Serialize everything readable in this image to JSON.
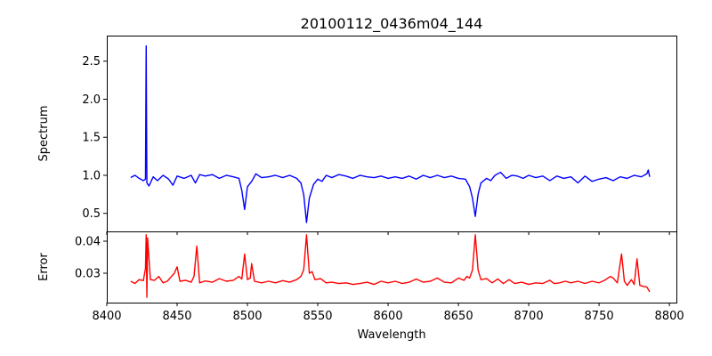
{
  "chart_data": [
    {
      "type": "line",
      "title": "20100112_0436m04_144",
      "xlabel": "",
      "ylabel": "Spectrum",
      "xlim": [
        8400,
        8805
      ],
      "ylim": [
        0.263,
        2.836
      ],
      "xticks": [
        8400,
        8450,
        8500,
        8550,
        8600,
        8650,
        8700,
        8750,
        8800
      ],
      "yticks": [
        0.5,
        1.0,
        1.5,
        2.0,
        2.5
      ],
      "ytick_labels": [
        "0.5",
        "1.0",
        "1.5",
        "2.0",
        "2.5"
      ],
      "grid": false,
      "series": [
        {
          "name": "Spectrum",
          "color": "#0000ff",
          "points": [
            [
              8417,
              0.97
            ],
            [
              8420,
              1.0
            ],
            [
              8423,
              0.96
            ],
            [
              8426,
              0.93
            ],
            [
              8427.5,
              0.95
            ],
            [
              8428,
              2.7
            ],
            [
              8428.5,
              0.9
            ],
            [
              8430,
              0.86
            ],
            [
              8433,
              0.98
            ],
            [
              8436,
              0.93
            ],
            [
              8440,
              1.0
            ],
            [
              8444,
              0.95
            ],
            [
              8447,
              0.87
            ],
            [
              8450,
              0.99
            ],
            [
              8455,
              0.96
            ],
            [
              8460,
              1.0
            ],
            [
              8463,
              0.9
            ],
            [
              8466,
              1.01
            ],
            [
              8470,
              0.99
            ],
            [
              8475,
              1.01
            ],
            [
              8480,
              0.96
            ],
            [
              8485,
              1.0
            ],
            [
              8490,
              0.98
            ],
            [
              8494,
              0.96
            ],
            [
              8496,
              0.8
            ],
            [
              8498,
              0.55
            ],
            [
              8500,
              0.85
            ],
            [
              8503,
              0.92
            ],
            [
              8506,
              1.02
            ],
            [
              8510,
              0.97
            ],
            [
              8515,
              0.98
            ],
            [
              8520,
              1.0
            ],
            [
              8525,
              0.97
            ],
            [
              8530,
              1.0
            ],
            [
              8535,
              0.96
            ],
            [
              8538,
              0.9
            ],
            [
              8540,
              0.75
            ],
            [
              8542,
              0.38
            ],
            [
              8544,
              0.7
            ],
            [
              8547,
              0.88
            ],
            [
              8550,
              0.95
            ],
            [
              8553,
              0.92
            ],
            [
              8556,
              1.0
            ],
            [
              8560,
              0.97
            ],
            [
              8565,
              1.01
            ],
            [
              8570,
              0.99
            ],
            [
              8575,
              0.96
            ],
            [
              8580,
              1.0
            ],
            [
              8585,
              0.98
            ],
            [
              8590,
              0.97
            ],
            [
              8595,
              0.99
            ],
            [
              8600,
              0.96
            ],
            [
              8605,
              0.98
            ],
            [
              8610,
              0.96
            ],
            [
              8615,
              0.99
            ],
            [
              8620,
              0.95
            ],
            [
              8625,
              1.0
            ],
            [
              8630,
              0.97
            ],
            [
              8635,
              1.0
            ],
            [
              8640,
              0.97
            ],
            [
              8645,
              0.99
            ],
            [
              8650,
              0.96
            ],
            [
              8655,
              0.95
            ],
            [
              8658,
              0.85
            ],
            [
              8660,
              0.7
            ],
            [
              8662,
              0.46
            ],
            [
              8664,
              0.75
            ],
            [
              8666,
              0.9
            ],
            [
              8670,
              0.96
            ],
            [
              8673,
              0.93
            ],
            [
              8676,
              1.0
            ],
            [
              8680,
              1.04
            ],
            [
              8684,
              0.96
            ],
            [
              8688,
              1.0
            ],
            [
              8692,
              0.99
            ],
            [
              8696,
              0.96
            ],
            [
              8700,
              1.0
            ],
            [
              8705,
              0.97
            ],
            [
              8710,
              0.99
            ],
            [
              8715,
              0.93
            ],
            [
              8720,
              0.99
            ],
            [
              8725,
              0.96
            ],
            [
              8730,
              0.98
            ],
            [
              8735,
              0.9
            ],
            [
              8740,
              0.99
            ],
            [
              8745,
              0.92
            ],
            [
              8750,
              0.95
            ],
            [
              8755,
              0.97
            ],
            [
              8760,
              0.93
            ],
            [
              8765,
              0.98
            ],
            [
              8770,
              0.96
            ],
            [
              8775,
              1.0
            ],
            [
              8780,
              0.98
            ],
            [
              8784,
              1.02
            ],
            [
              8785,
              1.07
            ],
            [
              8786,
              0.98
            ]
          ]
        }
      ]
    },
    {
      "type": "line",
      "title": "",
      "xlabel": "Wavelength",
      "ylabel": "Error",
      "xlim": [
        8400,
        8805
      ],
      "ylim": [
        0.02083,
        0.04306
      ],
      "xticks": [
        8400,
        8450,
        8500,
        8550,
        8600,
        8650,
        8700,
        8750,
        8800
      ],
      "xtick_labels": [
        "8400",
        "8450",
        "8500",
        "8550",
        "8600",
        "8650",
        "8700",
        "8750",
        "8800"
      ],
      "yticks": [
        0.03,
        0.04
      ],
      "ytick_labels": [
        "0.03",
        "0.04"
      ],
      "grid": false,
      "series": [
        {
          "name": "Error",
          "color": "#ff0000",
          "points": [
            [
              8417,
              0.0275
            ],
            [
              8420,
              0.0268
            ],
            [
              8423,
              0.028
            ],
            [
              8426,
              0.0277
            ],
            [
              8427.5,
              0.0315
            ],
            [
              8428,
              0.042
            ],
            [
              8428.5,
              0.0225
            ],
            [
              8429,
              0.041
            ],
            [
              8431,
              0.028
            ],
            [
              8434,
              0.0278
            ],
            [
              8437,
              0.029
            ],
            [
              8440,
              0.027
            ],
            [
              8443,
              0.0275
            ],
            [
              8446,
              0.029
            ],
            [
              8448,
              0.03
            ],
            [
              8450,
              0.032
            ],
            [
              8452,
              0.0275
            ],
            [
              8456,
              0.0278
            ],
            [
              8460,
              0.0272
            ],
            [
              8462,
              0.029
            ],
            [
              8464,
              0.0385
            ],
            [
              8466,
              0.027
            ],
            [
              8470,
              0.0276
            ],
            [
              8475,
              0.0272
            ],
            [
              8480,
              0.0283
            ],
            [
              8485,
              0.0275
            ],
            [
              8490,
              0.0278
            ],
            [
              8494,
              0.029
            ],
            [
              8496,
              0.0282
            ],
            [
              8498,
              0.036
            ],
            [
              8500,
              0.028
            ],
            [
              8502,
              0.0285
            ],
            [
              8503,
              0.033
            ],
            [
              8505,
              0.0275
            ],
            [
              8510,
              0.027
            ],
            [
              8515,
              0.0275
            ],
            [
              8520,
              0.027
            ],
            [
              8525,
              0.0277
            ],
            [
              8530,
              0.0272
            ],
            [
              8535,
              0.028
            ],
            [
              8538,
              0.029
            ],
            [
              8540,
              0.031
            ],
            [
              8542,
              0.042
            ],
            [
              8544,
              0.03
            ],
            [
              8546,
              0.0305
            ],
            [
              8548,
              0.028
            ],
            [
              8552,
              0.0283
            ],
            [
              8556,
              0.027
            ],
            [
              8560,
              0.0272
            ],
            [
              8565,
              0.0268
            ],
            [
              8570,
              0.027
            ],
            [
              8575,
              0.0265
            ],
            [
              8580,
              0.0268
            ],
            [
              8585,
              0.0272
            ],
            [
              8590,
              0.0265
            ],
            [
              8595,
              0.0275
            ],
            [
              8600,
              0.027
            ],
            [
              8605,
              0.0275
            ],
            [
              8610,
              0.0268
            ],
            [
              8615,
              0.0272
            ],
            [
              8620,
              0.0282
            ],
            [
              8625,
              0.0272
            ],
            [
              8630,
              0.0275
            ],
            [
              8635,
              0.0285
            ],
            [
              8640,
              0.0272
            ],
            [
              8645,
              0.027
            ],
            [
              8650,
              0.0285
            ],
            [
              8654,
              0.0278
            ],
            [
              8656,
              0.029
            ],
            [
              8658,
              0.0285
            ],
            [
              8660,
              0.031
            ],
            [
              8662,
              0.042
            ],
            [
              8664,
              0.031
            ],
            [
              8666,
              0.028
            ],
            [
              8670,
              0.0283
            ],
            [
              8674,
              0.027
            ],
            [
              8678,
              0.0282
            ],
            [
              8682,
              0.0268
            ],
            [
              8686,
              0.028
            ],
            [
              8690,
              0.0268
            ],
            [
              8695,
              0.0272
            ],
            [
              8700,
              0.0265
            ],
            [
              8705,
              0.027
            ],
            [
              8710,
              0.0268
            ],
            [
              8715,
              0.0278
            ],
            [
              8718,
              0.0268
            ],
            [
              8722,
              0.027
            ],
            [
              8726,
              0.0275
            ],
            [
              8730,
              0.027
            ],
            [
              8735,
              0.0275
            ],
            [
              8740,
              0.0268
            ],
            [
              8745,
              0.0275
            ],
            [
              8750,
              0.027
            ],
            [
              8754,
              0.0278
            ],
            [
              8758,
              0.029
            ],
            [
              8760,
              0.0285
            ],
            [
              8763,
              0.027
            ],
            [
              8766,
              0.036
            ],
            [
              8768,
              0.0275
            ],
            [
              8770,
              0.0262
            ],
            [
              8773,
              0.028
            ],
            [
              8775,
              0.0265
            ],
            [
              8777,
              0.0345
            ],
            [
              8779,
              0.0262
            ],
            [
              8782,
              0.0258
            ],
            [
              8784,
              0.0257
            ],
            [
              8786,
              0.0242
            ]
          ]
        }
      ]
    }
  ]
}
